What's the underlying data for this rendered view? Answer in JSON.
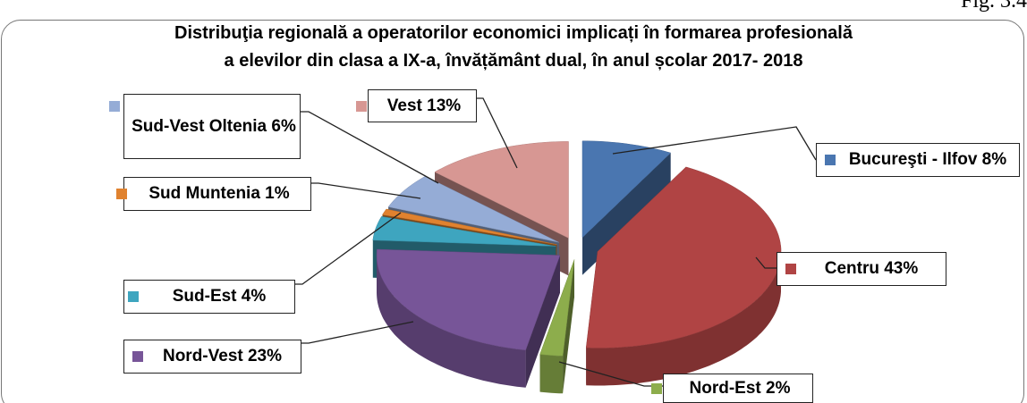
{
  "chart_data": {
    "type": "pie",
    "title": "Distribuţia regională a operatorilor economici implicați în formarea profesională\na elevilor din clasa a IX-a, învățământ dual, în anul școlar 2017- 2018",
    "figure_label": "Fig. 3.4",
    "values": [
      8,
      43,
      2,
      23,
      4,
      1,
      6,
      13
    ],
    "value_labels": [
      "Bucureşti - Ilfov 8%",
      "Centru 43%",
      "Nord-Est 2%",
      "Nord-Vest 23%",
      "Sud-Est 4%",
      "Sud Muntenia 1%",
      "Sud-Vest Oltenia 6%",
      "Vest 13%"
    ],
    "colors": [
      "#4a76b0",
      "#b04444",
      "#8dad4c",
      "#775598",
      "#3ea5bf",
      "#e0822f",
      "#95acd6",
      "#d79793"
    ],
    "exploded": true,
    "three_d": true
  }
}
